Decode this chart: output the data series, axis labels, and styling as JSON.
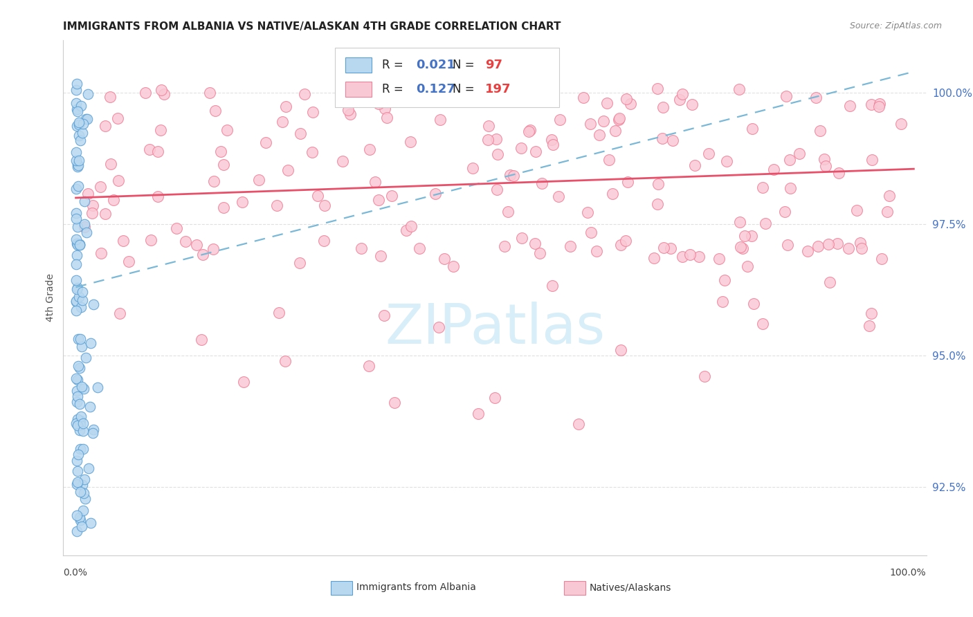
{
  "title": "IMMIGRANTS FROM ALBANIA VS NATIVE/ALASKAN 4TH GRADE CORRELATION CHART",
  "source": "Source: ZipAtlas.com",
  "ylabel": "4th Grade",
  "yticks": [
    92.5,
    95.0,
    97.5,
    100.0
  ],
  "ytick_labels": [
    "92.5%",
    "95.0%",
    "97.5%",
    "100.0%"
  ],
  "xlim": [
    0.0,
    100.0
  ],
  "ylim": [
    91.2,
    101.0
  ],
  "legend_blue_r": "0.021",
  "legend_blue_n": "97",
  "legend_pink_r": "0.127",
  "legend_pink_n": "197",
  "blue_face": "#b8d8f0",
  "blue_edge": "#5a9fd4",
  "pink_face": "#f9c8d5",
  "pink_edge": "#f08098",
  "blue_line_color": "#7ab8d8",
  "pink_line_color": "#e8506a",
  "watermark": "ZIPatlas",
  "watermark_color": "#d8eef8",
  "title_color": "#222222",
  "source_color": "#888888",
  "ytick_color": "#4472c4",
  "ylabel_color": "#555555",
  "grid_color": "#e0e0e0",
  "spine_color": "#cccccc"
}
